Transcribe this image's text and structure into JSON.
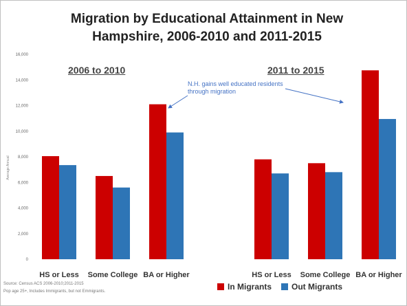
{
  "title": "Migration by Educational Attainment in New Hampshire, 2006-2010 and 2011-2015",
  "periods": {
    "left": "2006 to 2010",
    "right": "2011 to 2015"
  },
  "annotation": "N.H. gains well educated residents through migration",
  "source_line1": "Source: Census ACS 2006-2010;2011-2015",
  "source_line2": "Pop age 25+, Includes Immigrants, but not Emmigrants.",
  "colors": {
    "in": "#cc0000",
    "out": "#2e75b6",
    "annotation": "#4472c4"
  },
  "legend": {
    "in": "In Migrants",
    "out": "Out Migrants"
  },
  "chart_data": {
    "type": "bar",
    "title": "Migration by Educational Attainment in New Hampshire, 2006-2010 and 2011-2015",
    "ylabel": "Average Annual",
    "xlabel": "",
    "ylim": [
      0,
      16000
    ],
    "yticks": [
      "0",
      "2,000",
      "4,000",
      "6,000",
      "8,000",
      "10,000",
      "12,000",
      "14,000",
      "16,000"
    ],
    "grid": false,
    "legend_position": "bottom-right",
    "groups": [
      {
        "period": "2006 to 2010",
        "categories": [
          "HS or Less",
          "Some College",
          "BA or Higher"
        ],
        "series": [
          {
            "name": "In Migrants",
            "values": [
              8050,
              6500,
              12100
            ]
          },
          {
            "name": "Out Migrants",
            "values": [
              7350,
              5600,
              9900
            ]
          }
        ]
      },
      {
        "period": "2011 to 2015",
        "categories": [
          "HS or Less",
          "Some College",
          "BA or Higher"
        ],
        "series": [
          {
            "name": "In Migrants",
            "values": [
              7800,
              7500,
              14750
            ]
          },
          {
            "name": "Out Migrants",
            "values": [
              6700,
              6800,
              10950
            ]
          }
        ]
      }
    ]
  }
}
